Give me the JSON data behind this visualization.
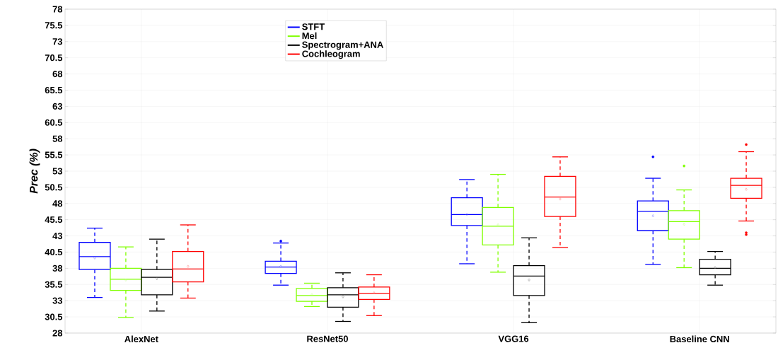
{
  "chart_data": {
    "type": "box",
    "ylabel": "Prec (%)",
    "categories": [
      "AlexNet",
      "ResNet50",
      "VGG16",
      "Baseline CNN"
    ],
    "series": [
      {
        "name": "STFT",
        "color": "#0000ff",
        "boxes": [
          {
            "low": 33.5,
            "q1": 37.8,
            "median": 39.8,
            "q3": 42.0,
            "high": 44.2,
            "mean": 39.6
          },
          {
            "low": 35.4,
            "q1": 37.2,
            "median": 38.2,
            "q3": 39.1,
            "high": 41.9,
            "mean": 38.3,
            "outliers": [
              42.2
            ]
          },
          {
            "low": 38.7,
            "q1": 44.6,
            "median": 46.3,
            "q3": 48.9,
            "high": 51.7,
            "mean": 46.3
          },
          {
            "low": 38.6,
            "q1": 43.8,
            "median": 46.8,
            "q3": 48.4,
            "high": 51.9,
            "mean": 46.1,
            "outliers": [
              55.2
            ]
          }
        ]
      },
      {
        "name": "Mel",
        "color": "#80ff00",
        "boxes": [
          {
            "low": 30.4,
            "q1": 34.6,
            "median": 36.3,
            "q3": 38.0,
            "high": 41.3,
            "mean": 36.2
          },
          {
            "low": 32.1,
            "q1": 32.9,
            "median": 33.8,
            "q3": 34.9,
            "high": 35.7,
            "mean": 33.9
          },
          {
            "low": 37.4,
            "q1": 41.6,
            "median": 44.5,
            "q3": 47.4,
            "high": 52.5,
            "mean": 44.7
          },
          {
            "low": 38.1,
            "q1": 42.5,
            "median": 45.2,
            "q3": 46.9,
            "high": 50.1,
            "mean": 44.8,
            "outliers": [
              53.8
            ]
          }
        ]
      },
      {
        "name": "Spectrogram+ANA",
        "color": "#000000",
        "boxes": [
          {
            "low": 31.4,
            "q1": 33.9,
            "median": 36.6,
            "q3": 37.8,
            "high": 42.5,
            "mean": 36.4
          },
          {
            "low": 29.8,
            "q1": 32.0,
            "median": 33.9,
            "q3": 35.0,
            "high": 37.3,
            "mean": 33.6
          },
          {
            "low": 29.6,
            "q1": 33.8,
            "median": 36.8,
            "q3": 38.4,
            "high": 42.7,
            "mean": 36.2
          },
          {
            "low": 35.4,
            "q1": 37.0,
            "median": 38.0,
            "q3": 39.4,
            "high": 40.6,
            "mean": 38.1
          }
        ]
      },
      {
        "name": "Cochleogram",
        "color": "#ff0000",
        "boxes": [
          {
            "low": 33.4,
            "q1": 35.9,
            "median": 37.9,
            "q3": 40.6,
            "high": 44.7,
            "mean": 38.3
          },
          {
            "low": 30.7,
            "q1": 33.2,
            "median": 34.1,
            "q3": 35.1,
            "high": 37.0,
            "mean": 34.2
          },
          {
            "low": 41.2,
            "q1": 46.0,
            "median": 49.0,
            "q3": 52.2,
            "high": 55.2,
            "mean": 48.7
          },
          {
            "low": 45.3,
            "q1": 48.8,
            "median": 50.8,
            "q3": 51.9,
            "high": 56.0,
            "mean": 50.2,
            "outliers": [
              57.1,
              43.5,
              43.2
            ]
          }
        ]
      }
    ],
    "ylim": [
      28,
      78
    ],
    "yticks": [
      28,
      30.5,
      33,
      35.5,
      38,
      40.5,
      43,
      45.5,
      48,
      50.5,
      53,
      55.5,
      58,
      60.5,
      63,
      65.5,
      68,
      70.5,
      73,
      75.5,
      78
    ],
    "grid": true,
    "legend": "top"
  }
}
